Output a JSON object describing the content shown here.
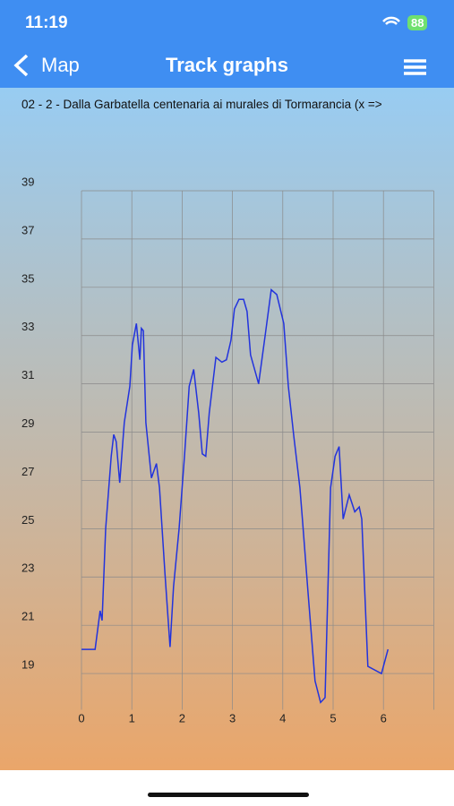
{
  "status_bar": {
    "time": "11:19",
    "battery": "88"
  },
  "nav": {
    "back": "Map",
    "title": "Track graphs"
  },
  "subtitle": "02 - 2 - Dalla Garbatella centenaria ai murales di Tormarancia (x =>",
  "chart_data": {
    "type": "line",
    "color": "#2233dd",
    "grid": true,
    "xlim": [
      0,
      7
    ],
    "xticks": [
      0,
      1,
      2,
      3,
      4,
      5,
      6
    ],
    "ylim": [
      17.5,
      39
    ],
    "yticks": [
      19,
      21,
      23,
      25,
      27,
      29,
      31,
      33,
      35,
      37,
      39
    ],
    "x": [
      0,
      0.27,
      0.37,
      0.41,
      0.48,
      0.59,
      0.64,
      0.69,
      0.76,
      0.85,
      0.96,
      1.01,
      1.09,
      1.16,
      1.19,
      1.23,
      1.28,
      1.39,
      1.49,
      1.55,
      1.66,
      1.76,
      1.83,
      1.94,
      2.05,
      2.14,
      2.23,
      2.33,
      2.4,
      2.47,
      2.54,
      2.67,
      2.79,
      2.88,
      2.97,
      3.04,
      3.13,
      3.22,
      3.29,
      3.36,
      3.52,
      3.65,
      3.77,
      3.88,
      4.02,
      4.11,
      4.22,
      4.34,
      4.39,
      4.5,
      4.64,
      4.75,
      4.84,
      4.95,
      5.04,
      5.12,
      5.2,
      5.32,
      5.43,
      5.52,
      5.57,
      5.69,
      5.96,
      6.09
    ],
    "values": [
      20.0,
      20.0,
      21.6,
      21.2,
      25.0,
      28.0,
      28.9,
      28.6,
      26.9,
      29.4,
      30.9,
      32.6,
      33.5,
      32.0,
      33.3,
      33.2,
      29.4,
      27.1,
      27.7,
      26.7,
      23.1,
      20.1,
      22.6,
      25.0,
      28.1,
      30.9,
      31.6,
      29.8,
      28.1,
      28.0,
      29.8,
      32.1,
      31.9,
      32.0,
      32.8,
      34.1,
      34.5,
      34.5,
      34.0,
      32.2,
      31.0,
      33.0,
      34.9,
      34.7,
      33.5,
      30.9,
      28.8,
      26.7,
      25.4,
      22.4,
      18.7,
      17.8,
      18.0,
      26.7,
      28.0,
      28.4,
      25.4,
      26.4,
      25.7,
      25.9,
      25.4,
      19.3,
      19.0,
      20.0
    ]
  }
}
